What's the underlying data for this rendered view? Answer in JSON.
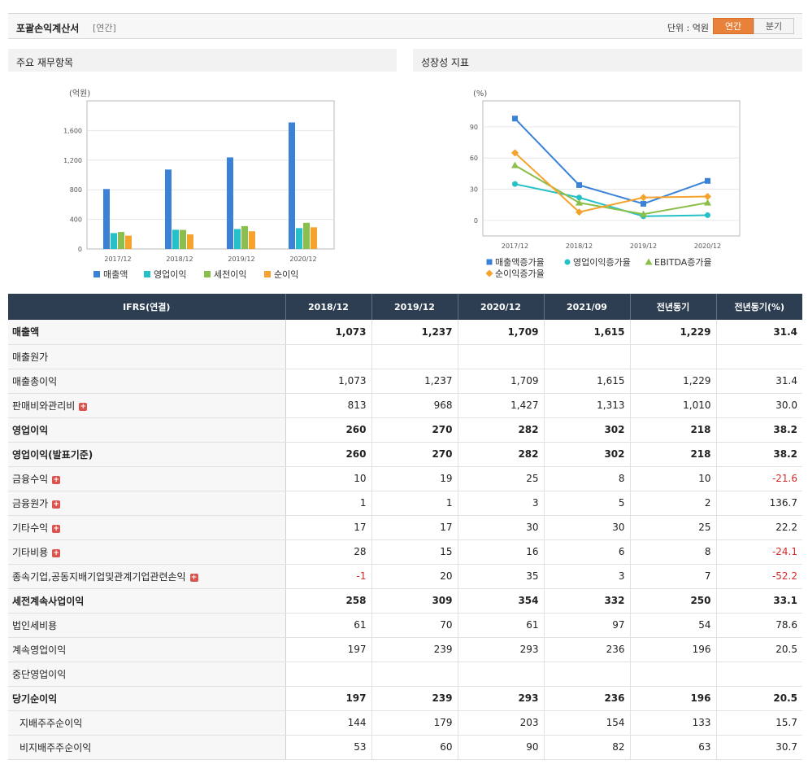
{
  "header": {
    "title": "포괄손익계산서",
    "subtitle": "[연간]",
    "unit_label": "단위 : 억원",
    "toggle_annual": "연간",
    "toggle_quarter": "분기"
  },
  "panels": {
    "left_title": "주요 재무항목",
    "right_title": "성장성 지표"
  },
  "colors": {
    "sales": "#3a82d8",
    "op": "#26c0c9",
    "pretax": "#8bbf4b",
    "net": "#f5a32c",
    "header_bg": "#2d3e52",
    "active": "#e8823a",
    "negative": "#d42a2a"
  },
  "chart_data": [
    {
      "type": "bar",
      "title": "주요 재무항목",
      "ylabel": "(억원)",
      "categories": [
        "2017/12",
        "2018/12",
        "2019/12",
        "2020/12"
      ],
      "series": [
        {
          "name": "매출액",
          "values": [
            810,
            1073,
            1237,
            1709
          ]
        },
        {
          "name": "영업이익",
          "values": [
            215,
            260,
            270,
            282
          ]
        },
        {
          "name": "세전이익",
          "values": [
            230,
            258,
            309,
            354
          ]
        },
        {
          "name": "순이익",
          "values": [
            180,
            197,
            239,
            293
          ]
        }
      ],
      "ylim": [
        0,
        2000
      ],
      "yticks": [
        "0",
        "400",
        "800",
        "1,200",
        "1,600"
      ],
      "legend": "bottom",
      "grid": true
    },
    {
      "type": "line",
      "title": "성장성 지표",
      "ylabel": "(%)",
      "categories": [
        "2017/12",
        "2018/12",
        "2019/12",
        "2020/12"
      ],
      "series": [
        {
          "name": "매출액증가율",
          "values": [
            98,
            34,
            16,
            38
          ]
        },
        {
          "name": "영업이익증가율",
          "values": [
            35,
            22,
            4,
            5
          ]
        },
        {
          "name": "EBITDA증가율",
          "values": [
            53,
            17,
            6,
            17
          ]
        },
        {
          "name": "순이익증가율",
          "values": [
            65,
            8,
            22,
            23
          ]
        }
      ],
      "ylim": [
        -15,
        115
      ],
      "yticks": [
        "0",
        "30",
        "60",
        "90"
      ],
      "legend": "bottom",
      "grid": true
    }
  ],
  "table": {
    "headers": [
      "IFRS(연결)",
      "2018/12",
      "2019/12",
      "2020/12",
      "2021/09",
      "전년동기",
      "전년동기(%)"
    ],
    "rows": [
      {
        "label": "매출액",
        "bold": true,
        "values": [
          "1,073",
          "1,237",
          "1,709",
          "1,615",
          "1,229",
          "31.4"
        ]
      },
      {
        "label": "매출원가",
        "values": [
          "",
          "",
          "",
          "",
          "",
          ""
        ]
      },
      {
        "label": "매출총이익",
        "values": [
          "1,073",
          "1,237",
          "1,709",
          "1,615",
          "1,229",
          "31.4"
        ]
      },
      {
        "label": "판매비와관리비",
        "plus": true,
        "values": [
          "813",
          "968",
          "1,427",
          "1,313",
          "1,010",
          "30.0"
        ]
      },
      {
        "label": "영업이익",
        "bold": true,
        "sep": true,
        "values": [
          "260",
          "270",
          "282",
          "302",
          "218",
          "38.2"
        ]
      },
      {
        "label": "영업이익(발표기준)",
        "bold": true,
        "values": [
          "260",
          "270",
          "282",
          "302",
          "218",
          "38.2"
        ]
      },
      {
        "label": "금융수익",
        "plus": true,
        "values": [
          "10",
          "19",
          "25",
          "8",
          "10",
          "-21.6"
        ]
      },
      {
        "label": "금융원가",
        "plus": true,
        "values": [
          "1",
          "1",
          "3",
          "5",
          "2",
          "136.7"
        ]
      },
      {
        "label": "기타수익",
        "plus": true,
        "values": [
          "17",
          "17",
          "30",
          "30",
          "25",
          "22.2"
        ]
      },
      {
        "label": "기타비용",
        "plus": true,
        "values": [
          "28",
          "15",
          "16",
          "6",
          "8",
          "-24.1"
        ]
      },
      {
        "label": "종속기업,공동지배기업및관계기업관련손익",
        "plus": true,
        "values": [
          "-1",
          "20",
          "35",
          "3",
          "7",
          "-52.2"
        ]
      },
      {
        "label": "세전계속사업이익",
        "bold": true,
        "sep": true,
        "values": [
          "258",
          "309",
          "354",
          "332",
          "250",
          "33.1"
        ]
      },
      {
        "label": "법인세비용",
        "values": [
          "61",
          "70",
          "61",
          "97",
          "54",
          "78.6"
        ]
      },
      {
        "label": "계속영업이익",
        "values": [
          "197",
          "239",
          "293",
          "236",
          "196",
          "20.5"
        ]
      },
      {
        "label": "중단영업이익",
        "values": [
          "",
          "",
          "",
          "",
          "",
          ""
        ]
      },
      {
        "label": "당기순이익",
        "bold": true,
        "values": [
          "197",
          "239",
          "293",
          "236",
          "196",
          "20.5"
        ]
      },
      {
        "label": "지배주주순이익",
        "indent": true,
        "values": [
          "144",
          "179",
          "203",
          "154",
          "133",
          "15.7"
        ]
      },
      {
        "label": "비지배주주순이익",
        "indent": true,
        "values": [
          "53",
          "60",
          "90",
          "82",
          "63",
          "30.7"
        ]
      }
    ]
  }
}
